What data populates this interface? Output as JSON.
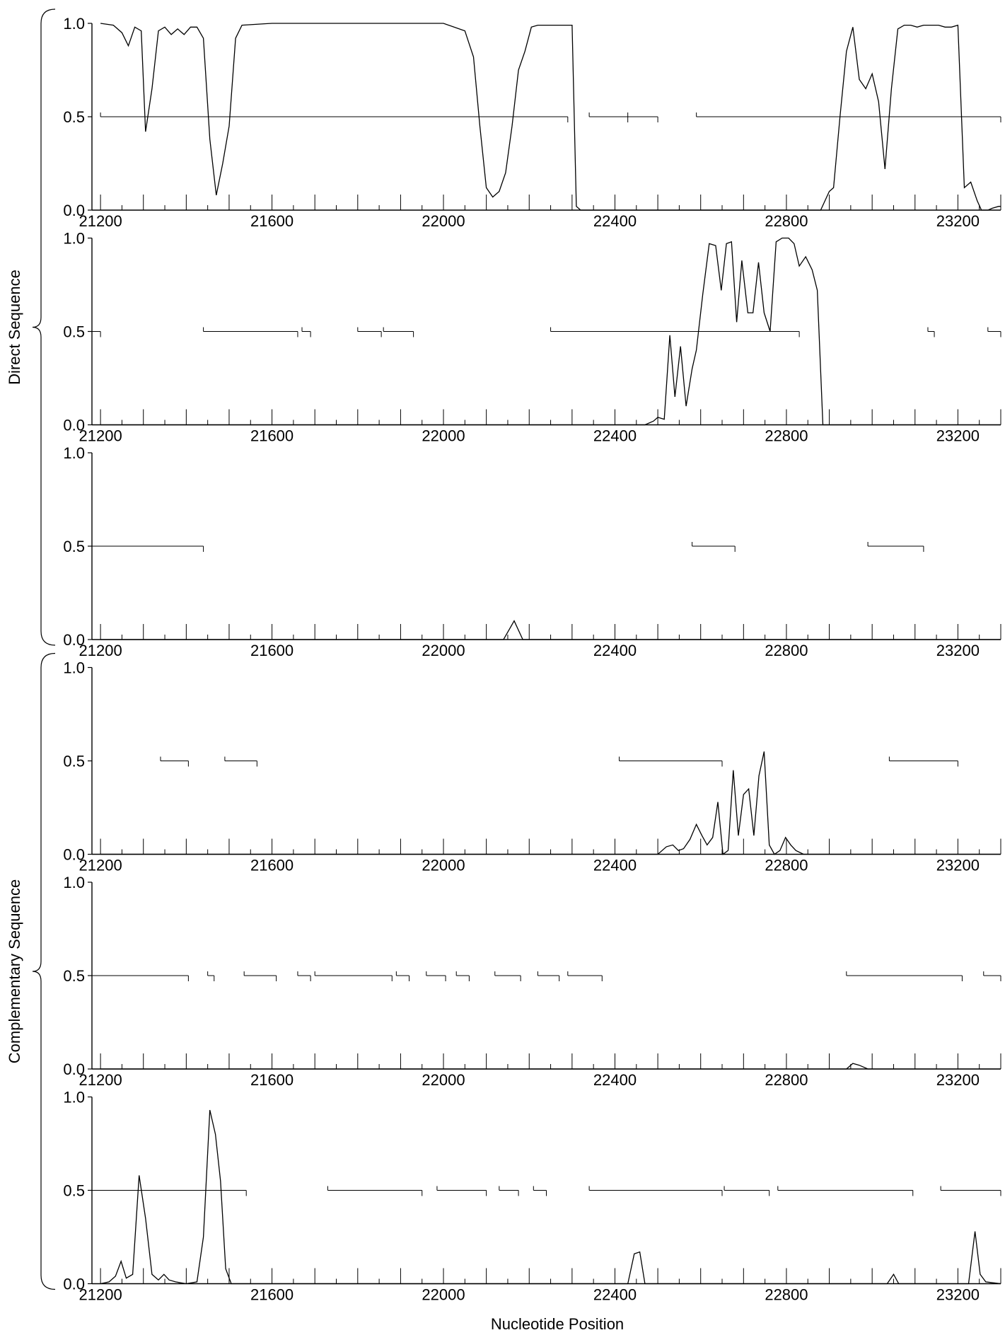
{
  "chart_data": {
    "type": "line",
    "xlabel": "Nucleotide Position",
    "xlim": [
      21180,
      23300
    ],
    "ylim": [
      0,
      1
    ],
    "x_ticks": [
      21200,
      21600,
      22000,
      22400,
      22800,
      23200
    ],
    "y_ticks": [
      "0.0",
      "0.5",
      "1.0"
    ],
    "groups": [
      {
        "label": "Direct Sequence",
        "panels": [
          0,
          1,
          2
        ]
      },
      {
        "label": "Complementary Sequence",
        "panels": [
          3,
          4,
          5
        ]
      }
    ],
    "panels": [
      {
        "probability": [
          [
            21200,
            1.0
          ],
          [
            21230,
            0.99
          ],
          [
            21250,
            0.95
          ],
          [
            21265,
            0.88
          ],
          [
            21280,
            0.98
          ],
          [
            21295,
            0.96
          ],
          [
            21305,
            0.42
          ],
          [
            21320,
            0.65
          ],
          [
            21335,
            0.96
          ],
          [
            21350,
            0.98
          ],
          [
            21365,
            0.94
          ],
          [
            21380,
            0.97
          ],
          [
            21395,
            0.94
          ],
          [
            21410,
            0.98
          ],
          [
            21425,
            0.98
          ],
          [
            21440,
            0.92
          ],
          [
            21455,
            0.38
          ],
          [
            21470,
            0.08
          ],
          [
            21485,
            0.25
          ],
          [
            21500,
            0.45
          ],
          [
            21515,
            0.92
          ],
          [
            21530,
            0.99
          ],
          [
            21600,
            1.0
          ],
          [
            22000,
            1.0
          ],
          [
            22050,
            0.96
          ],
          [
            22070,
            0.82
          ],
          [
            22085,
            0.45
          ],
          [
            22100,
            0.12
          ],
          [
            22115,
            0.07
          ],
          [
            22130,
            0.1
          ],
          [
            22145,
            0.2
          ],
          [
            22160,
            0.45
          ],
          [
            22175,
            0.75
          ],
          [
            22190,
            0.85
          ],
          [
            22205,
            0.98
          ],
          [
            22220,
            0.99
          ],
          [
            22240,
            0.99
          ],
          [
            22300,
            0.99
          ],
          [
            22310,
            0.02
          ],
          [
            22320,
            0.0
          ],
          [
            22880,
            0.0
          ],
          [
            22900,
            0.1
          ],
          [
            22910,
            0.12
          ],
          [
            22925,
            0.5
          ],
          [
            22940,
            0.85
          ],
          [
            22955,
            0.98
          ],
          [
            22970,
            0.7
          ],
          [
            22985,
            0.65
          ],
          [
            23000,
            0.73
          ],
          [
            23015,
            0.58
          ],
          [
            23030,
            0.22
          ],
          [
            23045,
            0.65
          ],
          [
            23060,
            0.97
          ],
          [
            23075,
            0.99
          ],
          [
            23090,
            0.99
          ],
          [
            23105,
            0.98
          ],
          [
            23120,
            0.99
          ],
          [
            23140,
            0.99
          ],
          [
            23155,
            0.99
          ],
          [
            23170,
            0.98
          ],
          [
            23185,
            0.98
          ],
          [
            23200,
            0.99
          ],
          [
            23215,
            0.12
          ],
          [
            23230,
            0.15
          ],
          [
            23245,
            0.05
          ],
          [
            23255,
            0.0
          ],
          [
            23270,
            0.0
          ],
          [
            23280,
            0.01
          ],
          [
            23295,
            0.02
          ],
          [
            23300,
            0.02
          ]
        ],
        "orfs": [
          [
            21200,
            22290
          ],
          [
            22340,
            22430
          ],
          [
            22430,
            22500
          ],
          [
            22590,
            23300
          ]
        ]
      },
      {
        "probability": [
          [
            21200,
            0.0
          ],
          [
            22470,
            0.0
          ],
          [
            22490,
            0.02
          ],
          [
            22500,
            0.04
          ],
          [
            22515,
            0.03
          ],
          [
            22528,
            0.48
          ],
          [
            22540,
            0.15
          ],
          [
            22553,
            0.42
          ],
          [
            22566,
            0.1
          ],
          [
            22580,
            0.3
          ],
          [
            22590,
            0.4
          ],
          [
            22605,
            0.7
          ],
          [
            22620,
            0.97
          ],
          [
            22635,
            0.96
          ],
          [
            22648,
            0.72
          ],
          [
            22660,
            0.97
          ],
          [
            22672,
            0.98
          ],
          [
            22684,
            0.55
          ],
          [
            22696,
            0.88
          ],
          [
            22710,
            0.6
          ],
          [
            22722,
            0.6
          ],
          [
            22735,
            0.87
          ],
          [
            22748,
            0.6
          ],
          [
            22762,
            0.5
          ],
          [
            22776,
            0.98
          ],
          [
            22790,
            1.0
          ],
          [
            22805,
            1.0
          ],
          [
            22818,
            0.97
          ],
          [
            22830,
            0.85
          ],
          [
            22845,
            0.9
          ],
          [
            22860,
            0.83
          ],
          [
            22872,
            0.72
          ],
          [
            22885,
            0.0
          ],
          [
            23300,
            0.0
          ]
        ],
        "orfs": [
          [
            21180,
            21200
          ],
          [
            21440,
            21660
          ],
          [
            21670,
            21690
          ],
          [
            21800,
            21855
          ],
          [
            21860,
            21930
          ],
          [
            22250,
            22830
          ],
          [
            23130,
            23145
          ],
          [
            23270,
            23300
          ]
        ]
      },
      {
        "probability": [
          [
            21200,
            0.0
          ],
          [
            22140,
            0.0
          ],
          [
            22165,
            0.1
          ],
          [
            22185,
            0.0
          ],
          [
            23300,
            0.0
          ]
        ],
        "orfs": [
          [
            21180,
            21440
          ],
          [
            22580,
            22680
          ],
          [
            22990,
            23120
          ]
        ]
      },
      {
        "probability": [
          [
            21200,
            0.0
          ],
          [
            22500,
            0.0
          ],
          [
            22520,
            0.04
          ],
          [
            22535,
            0.05
          ],
          [
            22548,
            0.02
          ],
          [
            22560,
            0.03
          ],
          [
            22575,
            0.08
          ],
          [
            22590,
            0.16
          ],
          [
            22603,
            0.1
          ],
          [
            22615,
            0.05
          ],
          [
            22628,
            0.09
          ],
          [
            22640,
            0.28
          ],
          [
            22652,
            0.0
          ],
          [
            22664,
            0.02
          ],
          [
            22676,
            0.45
          ],
          [
            22688,
            0.1
          ],
          [
            22700,
            0.32
          ],
          [
            22712,
            0.35
          ],
          [
            22724,
            0.1
          ],
          [
            22736,
            0.42
          ],
          [
            22748,
            0.55
          ],
          [
            22760,
            0.05
          ],
          [
            22772,
            0.0
          ],
          [
            22785,
            0.02
          ],
          [
            22798,
            0.09
          ],
          [
            22810,
            0.05
          ],
          [
            22822,
            0.02
          ],
          [
            22840,
            0.0
          ],
          [
            23300,
            0.0
          ]
        ],
        "orfs": [
          [
            21340,
            21405
          ],
          [
            21490,
            21565
          ],
          [
            22410,
            22650
          ],
          [
            23040,
            23200
          ]
        ]
      },
      {
        "probability": [
          [
            21200,
            0.0
          ],
          [
            22940,
            0.0
          ],
          [
            22955,
            0.03
          ],
          [
            22970,
            0.02
          ],
          [
            22990,
            0.0
          ],
          [
            23300,
            0.0
          ]
        ],
        "orfs": [
          [
            21180,
            21405
          ],
          [
            21450,
            21465
          ],
          [
            21535,
            21610
          ],
          [
            21660,
            21690
          ],
          [
            21700,
            21880
          ],
          [
            21890,
            21920
          ],
          [
            21960,
            22005
          ],
          [
            22030,
            22060
          ],
          [
            22120,
            22180
          ],
          [
            22220,
            22270
          ],
          [
            22290,
            22370
          ],
          [
            22940,
            23210
          ],
          [
            23260,
            23300
          ]
        ]
      },
      {
        "probability": [
          [
            21200,
            0.0
          ],
          [
            21220,
            0.01
          ],
          [
            21235,
            0.04
          ],
          [
            21248,
            0.12
          ],
          [
            21260,
            0.03
          ],
          [
            21275,
            0.05
          ],
          [
            21290,
            0.58
          ],
          [
            21305,
            0.35
          ],
          [
            21320,
            0.05
          ],
          [
            21335,
            0.02
          ],
          [
            21348,
            0.05
          ],
          [
            21360,
            0.02
          ],
          [
            21375,
            0.01
          ],
          [
            21400,
            0.0
          ],
          [
            21425,
            0.01
          ],
          [
            21440,
            0.25
          ],
          [
            21455,
            0.93
          ],
          [
            21468,
            0.8
          ],
          [
            21480,
            0.55
          ],
          [
            21492,
            0.08
          ],
          [
            21505,
            0.0
          ],
          [
            22430,
            0.0
          ],
          [
            22445,
            0.16
          ],
          [
            22458,
            0.17
          ],
          [
            22470,
            0.0
          ],
          [
            23035,
            0.0
          ],
          [
            23050,
            0.05
          ],
          [
            23062,
            0.0
          ],
          [
            23225,
            0.0
          ],
          [
            23240,
            0.28
          ],
          [
            23252,
            0.05
          ],
          [
            23265,
            0.01
          ],
          [
            23300,
            0.0
          ]
        ],
        "orfs": [
          [
            21180,
            21540
          ],
          [
            21730,
            21950
          ],
          [
            21985,
            22100
          ],
          [
            22130,
            22175
          ],
          [
            22210,
            22240
          ],
          [
            22340,
            22650
          ],
          [
            22655,
            22760
          ],
          [
            22780,
            23095
          ],
          [
            23160,
            23300
          ]
        ]
      }
    ]
  }
}
